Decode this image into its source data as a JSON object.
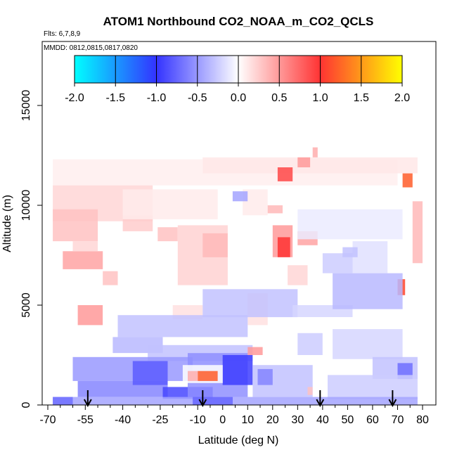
{
  "chart_data": {
    "type": "heatmap",
    "title": "ATOM1 Northbound CO2_NOAA_m_CO2_QCLS",
    "flights_label": "Flts: 6,7,8,9",
    "dates_label": "MMDD: 0812,0815,0817,0820",
    "xlabel": "Latitude (deg N)",
    "ylabel": "Altitude (m)",
    "xlim": [
      -70,
      80
    ],
    "ylim": [
      0,
      17500
    ],
    "x_ticks": [
      -70,
      -55,
      -40,
      -25,
      -10,
      0,
      10,
      20,
      30,
      40,
      50,
      60,
      70,
      80
    ],
    "x_tick_labels": [
      "-70",
      "-55",
      "-40",
      "-25",
      "-10",
      "0",
      "10",
      "20",
      "30",
      "40",
      "50",
      "60",
      "70",
      "80"
    ],
    "x_minor_ticks": [
      -65,
      -60,
      -50,
      -45,
      -35,
      -30,
      -20,
      -15,
      -5,
      5,
      15,
      25,
      35,
      45,
      55,
      65,
      75
    ],
    "y_ticks": [
      0,
      5000,
      10000,
      15000
    ],
    "y_tick_labels": [
      "0",
      "5000",
      "10000",
      "15000"
    ],
    "colorbar": {
      "min": -2.0,
      "max": 2.0,
      "ticks": [
        -2.0,
        -1.5,
        -1.0,
        -0.5,
        0.0,
        0.5,
        1.0,
        1.5,
        2.0
      ],
      "tick_labels": [
        "-2.0",
        "-1.5",
        "-1.0",
        "-0.5",
        "0.0",
        "0.5",
        "1.0",
        "1.5",
        "2.0"
      ],
      "colors": [
        "#00ffff",
        "#3333ff",
        "#ffffff",
        "#ff3333",
        "#ffff00"
      ]
    },
    "arrow_latitudes": [
      -54,
      -8,
      39,
      68
    ],
    "cells": [
      {
        "x0": -68,
        "x1": 70,
        "y0": 11000,
        "y1": 12300,
        "v": 0.08
      },
      {
        "x0": -8,
        "x1": 78,
        "y0": 11600,
        "y1": 12400,
        "v": 0.12
      },
      {
        "x0": 22,
        "x1": 28,
        "y0": 11200,
        "y1": 11900,
        "v": 0.9
      },
      {
        "x0": 30,
        "x1": 35,
        "y0": 11900,
        "y1": 12400,
        "v": 0.5
      },
      {
        "x0": 72,
        "x1": 76,
        "y0": 10900,
        "y1": 11600,
        "v": 1.2
      },
      {
        "x0": 36,
        "x1": 38,
        "y0": 12400,
        "y1": 12900,
        "v": 0.4
      },
      {
        "x0": -68,
        "x1": -28,
        "y0": 9200,
        "y1": 11000,
        "v": 0.2
      },
      {
        "x0": -68,
        "x1": -50,
        "y0": 8200,
        "y1": 9800,
        "v": 0.3
      },
      {
        "x0": -40,
        "x1": -28,
        "y0": 8700,
        "y1": 9500,
        "v": 0.25
      },
      {
        "x0": -26,
        "x1": -18,
        "y0": 8200,
        "y1": 8900,
        "v": 0.3
      },
      {
        "x0": -64,
        "x1": -48,
        "y0": 6800,
        "y1": 7700,
        "v": 0.45
      },
      {
        "x0": -60,
        "x1": -50,
        "y0": 7700,
        "y1": 8200,
        "v": 0.2
      },
      {
        "x0": -48,
        "x1": -42,
        "y0": 6000,
        "y1": 6700,
        "v": 0.3
      },
      {
        "x0": -18,
        "x1": 2,
        "y0": 6000,
        "y1": 9000,
        "v": 0.22
      },
      {
        "x0": -8,
        "x1": 2,
        "y0": 7400,
        "y1": 8600,
        "v": 0.35
      },
      {
        "x0": -40,
        "x1": -2,
        "y0": 9300,
        "y1": 10800,
        "v": 0.1
      },
      {
        "x0": 8,
        "x1": 18,
        "y0": 9500,
        "y1": 10800,
        "v": 0.1
      },
      {
        "x0": 18,
        "x1": 24,
        "y0": 9600,
        "y1": 10000,
        "v": 0.35
      },
      {
        "x0": 20,
        "x1": 28,
        "y0": 7400,
        "y1": 9000,
        "v": 0.5
      },
      {
        "x0": 22,
        "x1": 27,
        "y0": 7400,
        "y1": 8400,
        "v": 1.0
      },
      {
        "x0": 30,
        "x1": 38,
        "y0": 8000,
        "y1": 8700,
        "v": 0.45
      },
      {
        "x0": 26,
        "x1": 34,
        "y0": 6000,
        "y1": 7000,
        "v": 0.2
      },
      {
        "x0": -58,
        "x1": -48,
        "y0": 4000,
        "y1": 5000,
        "v": 0.5
      },
      {
        "x0": -20,
        "x1": -8,
        "y0": 4300,
        "y1": 5000,
        "v": 0.15
      },
      {
        "x0": 10,
        "x1": 18,
        "y0": 4000,
        "y1": 5600,
        "v": 0.15
      },
      {
        "x0": 70,
        "x1": 73,
        "y0": 5500,
        "y1": 6300,
        "v": 1.1
      },
      {
        "x0": 76,
        "x1": 80,
        "y0": 7100,
        "y1": 10200,
        "v": 0.35
      },
      {
        "x0": -42,
        "x1": 10,
        "y0": 3400,
        "y1": 4500,
        "v": -0.3
      },
      {
        "x0": -44,
        "x1": -24,
        "y0": 2600,
        "y1": 3400,
        "v": -0.35
      },
      {
        "x0": -30,
        "x1": 12,
        "y0": 2200,
        "y1": 3000,
        "v": -0.3
      },
      {
        "x0": -8,
        "x1": 30,
        "y0": 4400,
        "y1": 5800,
        "v": -0.3
      },
      {
        "x0": 28,
        "x1": 52,
        "y0": 4400,
        "y1": 5000,
        "v": -0.2
      },
      {
        "x0": 44,
        "x1": 72,
        "y0": 4800,
        "y1": 6600,
        "v": -0.35
      },
      {
        "x0": 40,
        "x1": 52,
        "y0": 6600,
        "y1": 7600,
        "v": -0.25
      },
      {
        "x0": 52,
        "x1": 66,
        "y0": 6600,
        "y1": 8200,
        "v": -0.15
      },
      {
        "x0": 30,
        "x1": 72,
        "y0": 8300,
        "y1": 9800,
        "v": -0.1
      },
      {
        "x0": 4,
        "x1": 10,
        "y0": 10200,
        "y1": 10700,
        "v": -0.45
      },
      {
        "x0": 48,
        "x1": 54,
        "y0": 7400,
        "y1": 7900,
        "v": -0.3
      },
      {
        "x0": 30,
        "x1": 40,
        "y0": 2500,
        "y1": 3600,
        "v": -0.25
      },
      {
        "x0": 44,
        "x1": 72,
        "y0": 2300,
        "y1": 3800,
        "v": -0.2
      },
      {
        "x0": 60,
        "x1": 78,
        "y0": 1300,
        "y1": 2400,
        "v": -0.3
      },
      {
        "x0": 70,
        "x1": 76,
        "y0": 1300,
        "y1": 2100,
        "v": -0.7
      },
      {
        "x0": -60,
        "x1": -12,
        "y0": 1200,
        "y1": 2400,
        "v": -0.5
      },
      {
        "x0": -58,
        "x1": -22,
        "y0": 400,
        "y1": 1200,
        "v": -0.6
      },
      {
        "x0": -36,
        "x1": -22,
        "y0": 1000,
        "y1": 2200,
        "v": -0.8
      },
      {
        "x0": -24,
        "x1": -4,
        "y0": 300,
        "y1": 900,
        "v": -0.9
      },
      {
        "x0": -14,
        "x1": 10,
        "y0": 400,
        "y1": 2600,
        "v": -0.55
      },
      {
        "x0": 0,
        "x1": 12,
        "y0": 1000,
        "y1": 2500,
        "v": -0.95
      },
      {
        "x0": 12,
        "x1": 36,
        "y0": 400,
        "y1": 2000,
        "v": -0.3
      },
      {
        "x0": 14,
        "x1": 20,
        "y0": 1000,
        "y1": 1800,
        "v": -0.6
      },
      {
        "x0": 42,
        "x1": 78,
        "y0": 300,
        "y1": 1500,
        "v": -0.25
      },
      {
        "x0": -68,
        "x1": 78,
        "y0": 0,
        "y1": 400,
        "v": -0.45
      },
      {
        "x0": -68,
        "x1": -60,
        "y0": 0,
        "y1": 400,
        "v": -0.7
      },
      {
        "x0": -12,
        "x1": 4,
        "y0": 0,
        "y1": 400,
        "v": -0.75
      },
      {
        "x0": -16,
        "x1": 0,
        "y0": 1100,
        "y1": 2000,
        "v": 0.0
      },
      {
        "x0": -10,
        "x1": -2,
        "y0": 1200,
        "y1": 1700,
        "v": 1.2
      },
      {
        "x0": -14,
        "x1": -10,
        "y0": 1200,
        "y1": 1700,
        "v": 0.4
      },
      {
        "x0": 10,
        "x1": 16,
        "y0": 2500,
        "y1": 2900,
        "v": 0.5
      },
      {
        "x0": 34,
        "x1": 36,
        "y0": 500,
        "y1": 900,
        "v": 0.3
      }
    ]
  }
}
